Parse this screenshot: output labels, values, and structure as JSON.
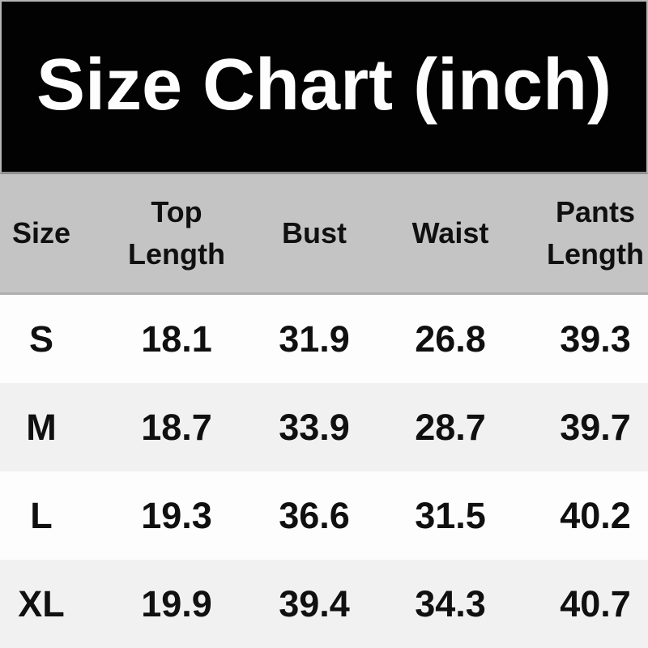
{
  "header": {
    "title": "Size Chart (inch)"
  },
  "table_display": {
    "columns": [
      "Size",
      "Top\nLength",
      "Bust",
      "Waist",
      "Pants\nLength"
    ]
  },
  "chart_data": {
    "type": "table",
    "title": "Size Chart (inch)",
    "units": "inch",
    "columns": [
      "Size",
      "Top Length",
      "Bust",
      "Waist",
      "Pants Length"
    ],
    "rows": [
      [
        "S",
        18.1,
        31.9,
        26.8,
        39.3
      ],
      [
        "M",
        18.7,
        33.9,
        28.7,
        39.7
      ],
      [
        "L",
        19.3,
        36.6,
        31.5,
        40.2
      ],
      [
        "XL",
        19.9,
        39.4,
        34.3,
        40.7
      ]
    ]
  },
  "colors": {
    "title_bg": "#020202",
    "title_text": "#fdfdfd",
    "title_border": "#b5b5b5",
    "header_row_bg": "#c4c4c4",
    "row_white_bg": "#fdfdfd",
    "row_gray_bg": "#f1f1f1",
    "cell_text": "#101010"
  }
}
